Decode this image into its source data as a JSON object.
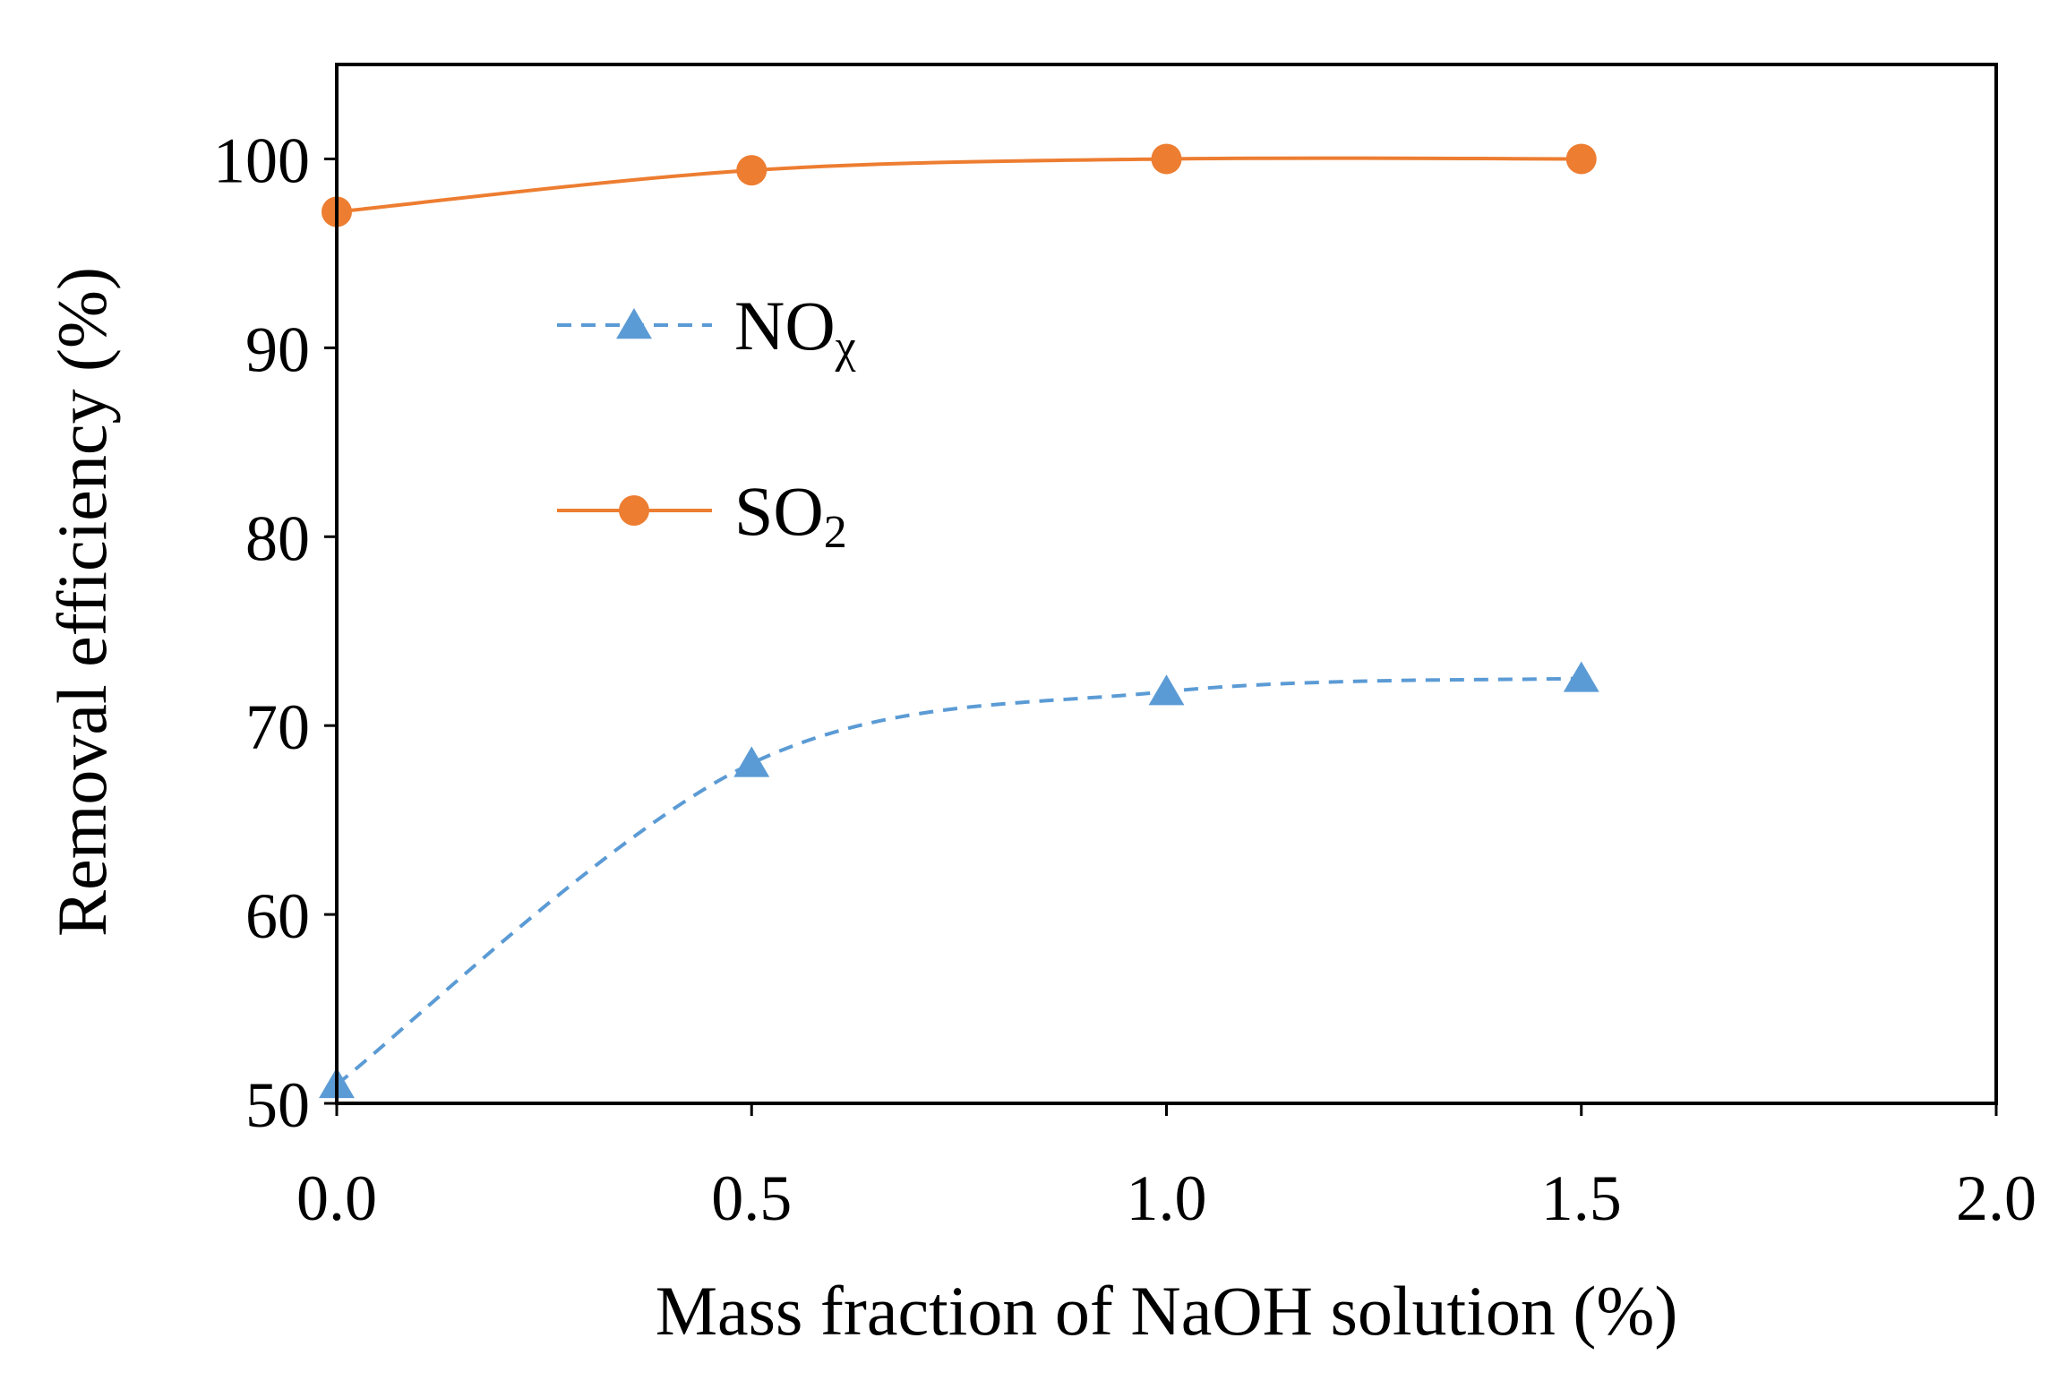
{
  "chart_data": {
    "type": "line",
    "title": "",
    "xlabel": "Mass fraction of NaOH solution (%)",
    "ylabel": "Removal efficiency (%)",
    "xlim": [
      0.0,
      2.0
    ],
    "ylim": [
      50,
      105
    ],
    "xticks": [
      "0.0",
      "0.5",
      "1.0",
      "1.5",
      "2.0"
    ],
    "yticks": [
      "50",
      "60",
      "70",
      "80",
      "90",
      "100"
    ],
    "grid": false,
    "legend_position": "upper-left inside",
    "series": [
      {
        "name": "NO",
        "name_subscript": "χ",
        "color": "#5B9BD5",
        "marker": "triangle",
        "line_style": "dashed",
        "smooth": true,
        "x": [
          0.0,
          0.5,
          1.0,
          1.5
        ],
        "y": [
          51.0,
          68.0,
          71.8,
          72.5
        ]
      },
      {
        "name": "SO",
        "name_subscript": "2",
        "color": "#ED7D31",
        "marker": "circle",
        "line_style": "solid",
        "smooth": true,
        "x": [
          0.0,
          0.5,
          1.0,
          1.5
        ],
        "y": [
          97.2,
          99.4,
          100.0,
          100.0
        ]
      }
    ]
  }
}
